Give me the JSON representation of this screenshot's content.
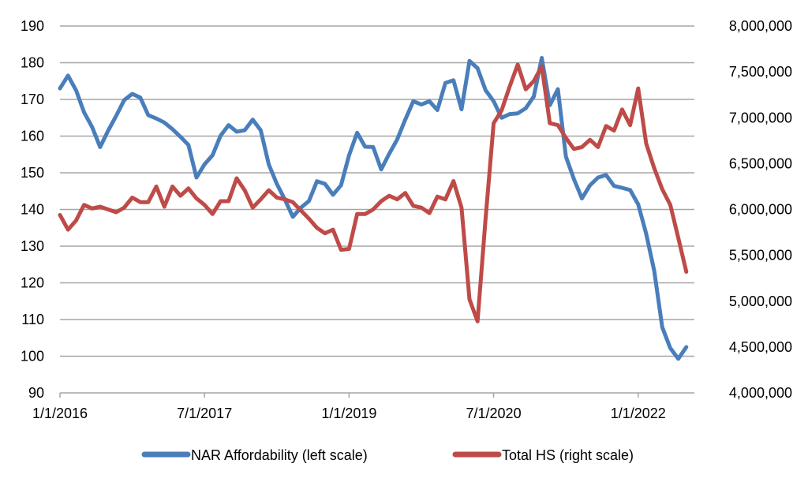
{
  "chart_data": {
    "type": "line",
    "title": "",
    "xlabel": "",
    "ylabel_left": "",
    "ylabel_right": "",
    "x_start": "1/1/2016",
    "x_frequency": "monthly",
    "x_tick_labels": [
      "1/1/2016",
      "7/1/2017",
      "1/1/2019",
      "7/1/2020",
      "1/1/2022"
    ],
    "x_tick_month_index": [
      0,
      18,
      36,
      54,
      72
    ],
    "x_range_months": [
      0,
      79
    ],
    "y_left": {
      "range": [
        90,
        190
      ],
      "ticks": [
        90,
        100,
        110,
        120,
        130,
        140,
        150,
        160,
        170,
        180,
        190
      ],
      "tick_labels": [
        "90",
        "100",
        "110",
        "120",
        "130",
        "140",
        "150",
        "160",
        "170",
        "180",
        "190"
      ],
      "grid": true
    },
    "y_right": {
      "range": [
        4000000,
        8000000
      ],
      "ticks": [
        4000000,
        4500000,
        5000000,
        5500000,
        6000000,
        6500000,
        7000000,
        7500000,
        8000000
      ],
      "tick_labels": [
        "4,000,000",
        "4,500,000",
        "5,000,000",
        "5,500,000",
        "6,000,000",
        "6,500,000",
        "7,000,000",
        "7,500,000",
        "8,000,000"
      ]
    },
    "legend_position": "bottom",
    "series": [
      {
        "name": "NAR Affordability (left scale)",
        "axis": "left",
        "color": "#4A7EBB",
        "values": [
          173,
          176.5,
          172.5,
          166.5,
          162.5,
          157,
          161.5,
          165.5,
          169.8,
          171.5,
          170.5,
          165.7,
          164.8,
          163.7,
          161.9,
          159.8,
          157.6,
          148.7,
          152.3,
          154.8,
          160.1,
          163,
          161.2,
          161.6,
          164.5,
          161.6,
          152.3,
          147,
          142.7,
          138,
          140.5,
          142.3,
          147.7,
          147,
          144,
          146.6,
          154.8,
          160.9,
          157.1,
          157,
          150.9,
          155.2,
          159.1,
          164.5,
          169.5,
          168.6,
          169.5,
          167.1,
          174.5,
          175.2,
          167.3,
          180.5,
          178.5,
          172.5,
          169.5,
          165,
          166,
          166.2,
          167.6,
          170.8,
          181.3,
          168.4,
          172.8,
          154.4,
          148.3,
          143,
          146.6,
          148.7,
          149.4,
          146.4,
          145.9,
          145.3,
          141.4,
          133.4,
          123.3,
          107.9,
          102.2,
          99.3,
          102.5
        ]
      },
      {
        "name": "Total HS (right scale)",
        "axis": "right",
        "color": "#BE4B48",
        "values": [
          5940000,
          5780000,
          5880000,
          6050000,
          6010000,
          6030000,
          6000000,
          5970000,
          6020000,
          6130000,
          6080000,
          6080000,
          6250000,
          6030000,
          6250000,
          6150000,
          6230000,
          6120000,
          6050000,
          5950000,
          6090000,
          6090000,
          6340000,
          6210000,
          6020000,
          6110000,
          6210000,
          6130000,
          6110000,
          6080000,
          5990000,
          5900000,
          5800000,
          5740000,
          5780000,
          5560000,
          5570000,
          5950000,
          5950000,
          6000000,
          6090000,
          6150000,
          6110000,
          6180000,
          6040000,
          6020000,
          5960000,
          6140000,
          6110000,
          6310000,
          6020000,
          5020000,
          4780000,
          5900000,
          6940000,
          7080000,
          7340000,
          7580000,
          7310000,
          7400000,
          7560000,
          6940000,
          6920000,
          6780000,
          6660000,
          6680000,
          6760000,
          6680000,
          6910000,
          6860000,
          7090000,
          6920000,
          7320000,
          6720000,
          6450000,
          6220000,
          6050000,
          5690000,
          5320000
        ]
      }
    ]
  }
}
